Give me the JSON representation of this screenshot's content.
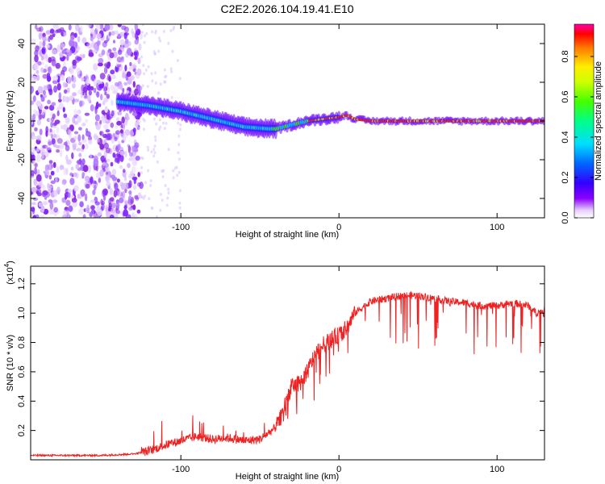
{
  "title": "C2E2.2026.104.19.41.E10",
  "chart_data": [
    {
      "type": "heatmap",
      "name": "spectrogram",
      "xlabel": "Height of straight line (km)",
      "ylabel": "Frequency (Hz)",
      "xlim": [
        -195,
        130
      ],
      "ylim": [
        -50,
        50
      ],
      "xticks": [
        -100,
        0,
        100
      ],
      "yticks": [
        -40,
        -20,
        0,
        20,
        40
      ],
      "colorbar": {
        "label": "Normalized spectral amplitude",
        "range": [
          0,
          0.96
        ],
        "ticks": [
          0.0,
          0.2,
          0.4,
          0.6,
          0.8
        ],
        "tick_labels": [
          "0.0",
          "0.2",
          "0.4",
          "0.6",
          "0.8"
        ]
      },
      "ridge": {
        "x": [
          -140,
          -120,
          -100,
          -80,
          -60,
          -45,
          -40,
          -30,
          -20,
          -10,
          0,
          5,
          10,
          20,
          50,
          100,
          130
        ],
        "y": [
          10,
          8,
          5,
          1,
          -3,
          -4,
          -4,
          -2,
          0,
          1,
          2,
          3,
          1,
          0,
          0,
          0,
          0
        ]
      },
      "noise_region_x": [
        -195,
        -125
      ]
    },
    {
      "type": "line",
      "name": "snr",
      "xlabel": "Height of straight line (km)",
      "ylabel": "SNR (10 * v/v)",
      "y_multiplier": "(x10⁴)",
      "y_multiplier_base": "(x10",
      "y_multiplier_exp": "4",
      "xlim": [
        -195,
        130
      ],
      "ylim": [
        0,
        1.32
      ],
      "xticks": [
        -100,
        0,
        100
      ],
      "yticks": [
        0.2,
        0.4,
        0.6,
        0.8,
        1.0,
        1.2
      ],
      "color": "#ee2222",
      "series": [
        {
          "name": "SNR",
          "x": [
            -195,
            -170,
            -150,
            -130,
            -120,
            -110,
            -100,
            -90,
            -80,
            -70,
            -60,
            -50,
            -40,
            -35,
            -30,
            -25,
            -20,
            -15,
            -10,
            -5,
            0,
            5,
            10,
            20,
            30,
            40,
            50,
            60,
            70,
            80,
            90,
            100,
            110,
            120,
            125,
            130
          ],
          "y": [
            0.03,
            0.03,
            0.03,
            0.04,
            0.06,
            0.1,
            0.13,
            0.16,
            0.14,
            0.15,
            0.13,
            0.14,
            0.22,
            0.35,
            0.5,
            0.52,
            0.6,
            0.72,
            0.78,
            0.82,
            0.85,
            0.9,
            1.0,
            1.08,
            1.1,
            1.12,
            1.12,
            1.1,
            1.08,
            1.07,
            1.05,
            1.05,
            1.07,
            1.05,
            1.0,
            1.02
          ]
        }
      ]
    }
  ]
}
